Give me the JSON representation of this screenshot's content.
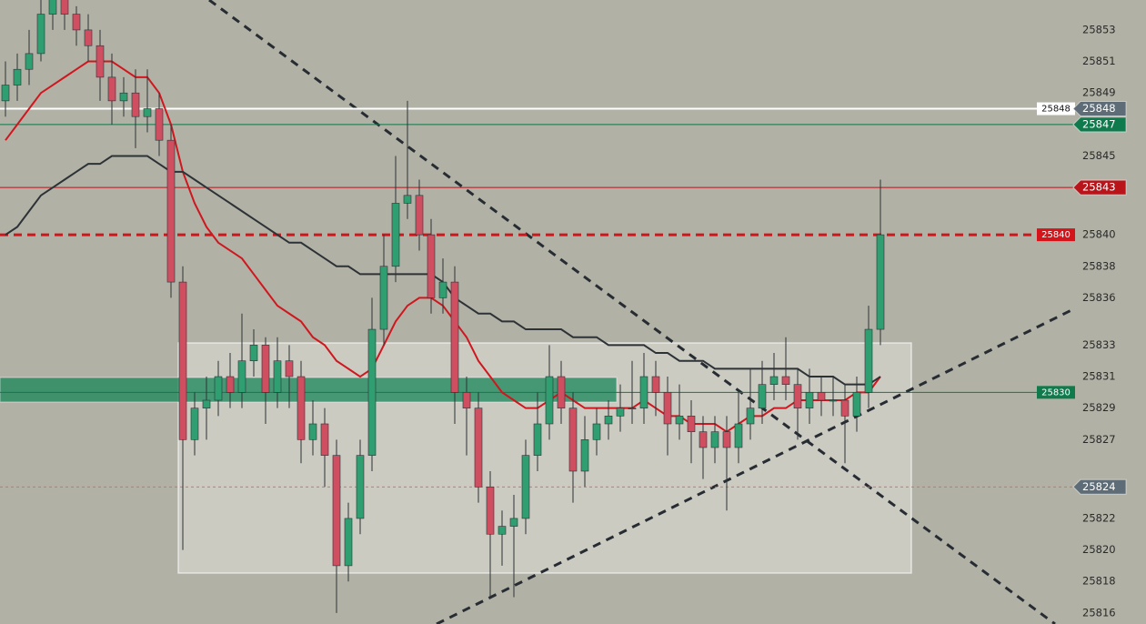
{
  "chart_data": {
    "type": "candlestick",
    "ylim": [
      25815.3,
      25854.9
    ],
    "yticks": [
      25853,
      25851,
      25849,
      25845,
      25840,
      25838,
      25836,
      25833,
      25831,
      25829,
      25827,
      25824,
      25822,
      25820,
      25818,
      25816
    ],
    "up_color": "#2f9e70",
    "down_color": "#cf4f60",
    "open": [
      25848.5,
      25849.5,
      25850.5,
      25851.5,
      25854,
      25855,
      25854,
      25853,
      25852,
      25850,
      25848.5,
      25849,
      25847.5,
      25848,
      25846,
      25837,
      25827,
      25829,
      25829.5,
      25831,
      25830,
      25832,
      25833,
      25830,
      25832,
      25831,
      25827,
      25828,
      25826,
      25819,
      25822,
      25826,
      25834,
      25838,
      25842,
      25842.5,
      25840,
      25836,
      25837,
      25830,
      25829,
      25824,
      25821,
      25821.5,
      25822,
      25826,
      25828,
      25831,
      25829,
      25825,
      25827,
      25828,
      25828.5,
      25829,
      25829,
      25831,
      25830,
      25828,
      25828.5,
      25827.5,
      25826.5,
      25827.5,
      25826.5,
      25828,
      25829,
      25830.5,
      25831,
      25830.5,
      25829,
      25830,
      25829.5,
      25829.5,
      25828.5,
      25830,
      25834
    ],
    "high": [
      25851,
      25851.5,
      25853,
      25855,
      25855.5,
      25855.5,
      25854.5,
      25854,
      25853,
      25851.5,
      25850,
      25850.5,
      25850.5,
      25849,
      25847,
      25838,
      25830,
      25831,
      25832,
      25832.5,
      25835,
      25834,
      25833.5,
      25833.5,
      25833,
      25832,
      25829.5,
      25829,
      25827,
      25823,
      25827,
      25836,
      25840,
      25845,
      25848.5,
      25843.5,
      25841,
      25838.5,
      25838,
      25831,
      25830,
      25825,
      25822.5,
      25823.5,
      25827,
      25830,
      25833,
      25832,
      25830,
      25828.5,
      25829,
      25829.5,
      25830.5,
      25832,
      25832.5,
      25832,
      25831,
      25830.5,
      25829.5,
      25828.5,
      25828.5,
      25828.5,
      25830,
      25831.5,
      25832,
      25832.5,
      25833.5,
      25831.5,
      25831.5,
      25831,
      25831,
      25830.5,
      25831,
      25835.5,
      25843.5
    ],
    "low": [
      25847.5,
      25848.5,
      25849.5,
      25851,
      25853,
      25853,
      25852,
      25851,
      25848.5,
      25847,
      25847.5,
      25845.5,
      25846.5,
      25845,
      25836,
      25820,
      25826,
      25827,
      25828.5,
      25829,
      25829,
      25831,
      25828,
      25829,
      25829,
      25825.5,
      25826,
      25824,
      25816,
      25818,
      25821,
      25825,
      25833,
      25837,
      25841,
      25839,
      25835,
      25835,
      25828,
      25826,
      25823,
      25817,
      25819,
      25817,
      25821,
      25825,
      25827,
      25828,
      25823,
      25824,
      25826,
      25827,
      25827.5,
      25828,
      25828,
      25828.5,
      25826,
      25827,
      25825.5,
      25824.5,
      25825.5,
      25822.5,
      25825.5,
      25827,
      25828,
      25829.5,
      25829.5,
      25827,
      25828,
      25828.5,
      25828.5,
      25825.5,
      25827.5,
      25829,
      25833
    ],
    "close": [
      25849.5,
      25850.5,
      25851.5,
      25854,
      25855,
      25854,
      25853,
      25852,
      25850,
      25848.5,
      25849,
      25847.5,
      25848,
      25846,
      25837,
      25827,
      25829,
      25829.5,
      25831,
      25830,
      25832,
      25833,
      25830,
      25832,
      25831,
      25827,
      25828,
      25826,
      25819,
      25822,
      25826,
      25834,
      25838,
      25842,
      25842.5,
      25840,
      25836,
      25837,
      25830,
      25829,
      25824,
      25821,
      25821.5,
      25822,
      25826,
      25828,
      25831,
      25829,
      25825,
      25827,
      25828,
      25828.5,
      25829,
      25829,
      25831,
      25830,
      25828,
      25828.5,
      25827.5,
      25826.5,
      25827.5,
      25826.5,
      25828,
      25829,
      25830.5,
      25831,
      25830.5,
      25829,
      25830,
      25829.5,
      25829.5,
      25828.5,
      25830,
      25834,
      25840
    ],
    "moving_averages": [
      {
        "color": "#d0161e",
        "values": [
          25846,
          25847,
          25848,
          25849,
          25849.5,
          25850,
          25850.5,
          25851,
          25851,
          25851,
          25850.5,
          25850,
          25850,
          25849,
          25847,
          25844,
          25842,
          25840.5,
          25839.5,
          25839,
          25838.5,
          25837.5,
          25836.5,
          25835.5,
          25835,
          25834.5,
          25833.5,
          25833,
          25832,
          25831.5,
          25831,
          25831.5,
          25833,
          25834.5,
          25835.5,
          25836,
          25836,
          25835.5,
          25834.5,
          25833.5,
          25832,
          25831,
          25830,
          25829.5,
          25829,
          25829,
          25829.5,
          25830,
          25829.5,
          25829,
          25829,
          25829,
          25829,
          25829,
          25829.5,
          25829,
          25828.5,
          25828.5,
          25828,
          25828,
          25828,
          25827.5,
          25828,
          25828.5,
          25828.5,
          25829,
          25829,
          25829.5,
          25829.5,
          25829.5,
          25829.5,
          25829.5,
          25830,
          25830,
          25831
        ]
      },
      {
        "color": "#2c3236",
        "values": [
          25840,
          25840.5,
          25841.5,
          25842.5,
          25843,
          25843.5,
          25844,
          25844.5,
          25844.5,
          25845,
          25845,
          25845,
          25845,
          25844.5,
          25844,
          25844,
          25843.5,
          25843,
          25842.5,
          25842,
          25841.5,
          25841,
          25840.5,
          25840,
          25839.5,
          25839.5,
          25839,
          25838.5,
          25838,
          25838,
          25837.5,
          25837.5,
          25837.5,
          25837.5,
          25837.5,
          25837.5,
          25837.5,
          25837,
          25836,
          25835.5,
          25835,
          25835,
          25834.5,
          25834.5,
          25834,
          25834,
          25834,
          25834,
          25833.5,
          25833.5,
          25833.5,
          25833,
          25833,
          25833,
          25833,
          25832.5,
          25832.5,
          25832,
          25832,
          25832,
          25831.5,
          25831.5,
          25831.5,
          25831.5,
          25831.5,
          25831.5,
          25831.5,
          25831.5,
          25831,
          25831,
          25831,
          25830.5,
          25830.5,
          25830.5,
          25831
        ]
      }
    ],
    "price_lines": [
      {
        "value": 25848,
        "color": "#ffffff",
        "tag_color": "#5d6c76",
        "style": "solid",
        "tag": "both"
      },
      {
        "value": 25847,
        "color": "#0f7a4c",
        "tag_color": "#0f7a4c",
        "style": "solid",
        "tag": "axis"
      },
      {
        "value": 25843,
        "color": "#b8141a",
        "tag_color": "#b8141a",
        "style": "solid",
        "tag": "axis"
      },
      {
        "value": 25840,
        "color": "#d4141a",
        "tag_color": "#d4141a",
        "style": "dashed",
        "tag": "inline"
      },
      {
        "value": 25830,
        "color": "#0f7a4c",
        "tag_color": "#0f7a4c",
        "style": "solid",
        "tag": "inline"
      },
      {
        "value": 25824,
        "color": "#cf6a6a",
        "tag_color": "#5d6c76",
        "style": "dotted",
        "tag": "axis"
      }
    ]
  }
}
